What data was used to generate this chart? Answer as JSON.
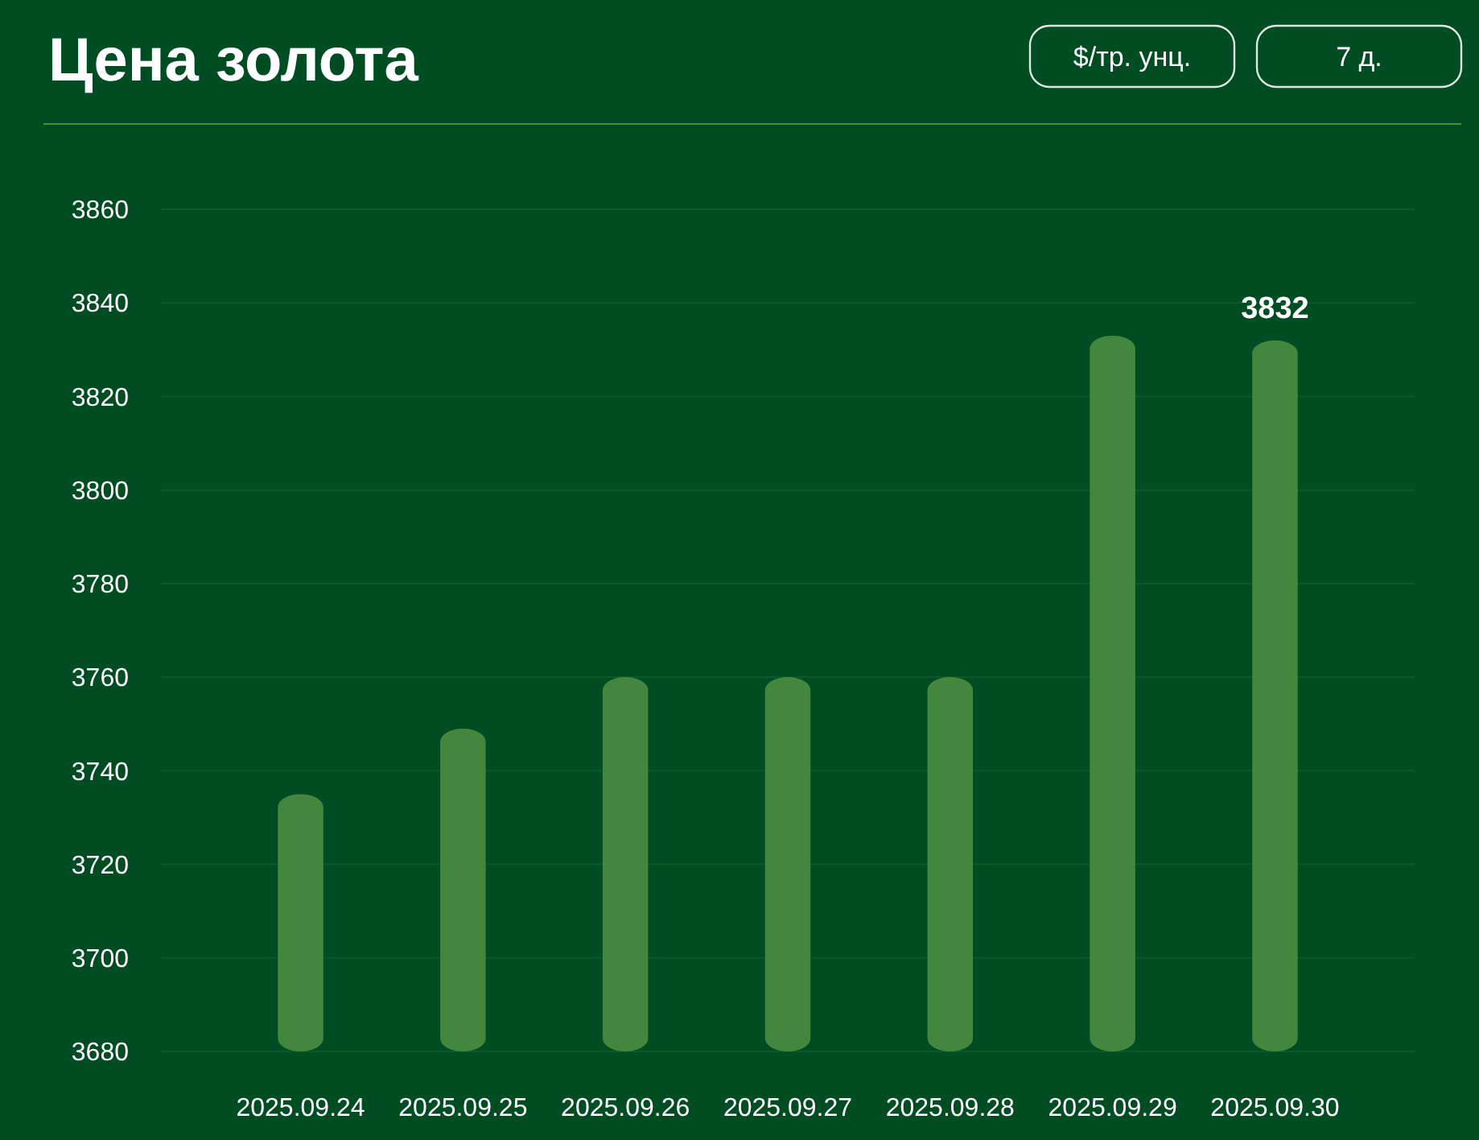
{
  "chart_data": {
    "type": "bar",
    "title": "Цена золота",
    "annotations": [
      "$/тр. унц.",
      "7 д."
    ],
    "categories": [
      "2025.09.24",
      "2025.09.25",
      "2025.09.26",
      "2025.09.27",
      "2025.09.28",
      "2025.09.29",
      "2025.09.30"
    ],
    "values": [
      3735,
      3749,
      3760,
      3760,
      3760,
      3833,
      3832
    ],
    "value_labels": [
      null,
      null,
      null,
      null,
      null,
      null,
      "3832"
    ],
    "color": "#43873f",
    "ylim": [
      3680,
      3860
    ],
    "yticks": [
      3680,
      3700,
      3720,
      3740,
      3760,
      3780,
      3800,
      3820,
      3840,
      3860
    ],
    "grid": "y"
  }
}
